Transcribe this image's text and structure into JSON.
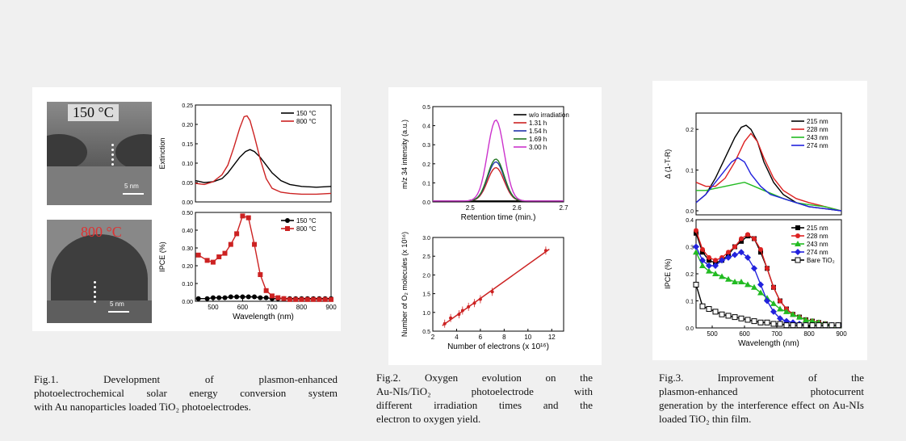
{
  "fig1": {
    "tem_top_label": "150 °C",
    "tem_bottom_label": "800 °C",
    "scale_label": "5 nm",
    "caption_lines": [
      "Fig.1. Development of plasmon-enhanced",
      "photoelectrochemical solar energy conversion system",
      "with Au nanoparticles loaded TiO₂ photoelectrodes."
    ]
  },
  "fig2": {
    "caption_lines": [
      "Fig.2. Oxygen evolution on the",
      "Au-NIs/TiO₂ photoelectrode with",
      "different irradiation times and the",
      "electron to oxygen yield."
    ]
  },
  "fig3": {
    "caption_lines": [
      "Fig.3. Improvement of the",
      "plasmon-enhanced photocurrent",
      "generation by the interference effect",
      "on Au-NIs loaded TiO₂ thin film."
    ]
  },
  "chart_data": [
    {
      "id": "fig1-extinction",
      "type": "line",
      "ylabel": "Extinction",
      "ylim": [
        0,
        0.25
      ],
      "xlim": [
        440,
        900
      ],
      "yticks": [
        "0.00",
        "0.05",
        "0.10",
        "0.15",
        "0.20",
        "0.25"
      ],
      "legend": "top-right",
      "series": [
        {
          "name": "150 °C",
          "color": "#000000",
          "x": [
            440,
            470,
            500,
            530,
            550,
            570,
            590,
            610,
            625,
            640,
            660,
            680,
            700,
            730,
            760,
            800,
            850,
            900
          ],
          "y": [
            0.055,
            0.05,
            0.052,
            0.06,
            0.075,
            0.095,
            0.115,
            0.13,
            0.135,
            0.13,
            0.115,
            0.095,
            0.075,
            0.055,
            0.045,
            0.04,
            0.038,
            0.04
          ]
        },
        {
          "name": "800 °C",
          "color": "#cc2222",
          "x": [
            440,
            470,
            500,
            530,
            550,
            570,
            590,
            605,
            615,
            625,
            640,
            660,
            680,
            700,
            730,
            760,
            800,
            850,
            900
          ],
          "y": [
            0.048,
            0.045,
            0.052,
            0.07,
            0.095,
            0.14,
            0.19,
            0.22,
            0.222,
            0.21,
            0.17,
            0.11,
            0.06,
            0.035,
            0.025,
            0.022,
            0.02,
            0.02,
            0.022
          ]
        }
      ]
    },
    {
      "id": "fig1-ipce",
      "type": "line",
      "xlabel": "Wavelength (nm)",
      "ylabel": "IPCE (%)",
      "ylim": [
        0,
        0.5
      ],
      "xlim": [
        440,
        900
      ],
      "xticks": [
        "500",
        "600",
        "700",
        "800",
        "900"
      ],
      "yticks": [
        "0.00",
        "0.10",
        "0.20",
        "0.30",
        "0.40",
        "0.50"
      ],
      "legend": "top-right",
      "series": [
        {
          "name": "150 °C",
          "color": "#000000",
          "marker": "circle",
          "x": [
            450,
            480,
            500,
            520,
            540,
            560,
            580,
            600,
            620,
            640,
            660,
            680,
            700,
            720,
            740,
            760,
            780,
            800,
            820,
            840,
            860,
            880,
            900
          ],
          "y": [
            0.015,
            0.015,
            0.02,
            0.02,
            0.02,
            0.025,
            0.025,
            0.025,
            0.025,
            0.025,
            0.02,
            0.02,
            0.015,
            0.015,
            0.015,
            0.015,
            0.015,
            0.015,
            0.015,
            0.015,
            0.015,
            0.015,
            0.015
          ]
        },
        {
          "name": "800 °C",
          "color": "#cc2222",
          "marker": "square",
          "x": [
            450,
            480,
            500,
            520,
            540,
            560,
            580,
            600,
            620,
            640,
            660,
            680,
            700,
            720,
            740,
            760,
            780,
            800,
            820,
            840,
            860,
            880,
            900
          ],
          "y": [
            0.26,
            0.23,
            0.22,
            0.25,
            0.27,
            0.32,
            0.38,
            0.48,
            0.47,
            0.32,
            0.15,
            0.06,
            0.03,
            0.02,
            0.015,
            0.01,
            0.01,
            0.01,
            0.01,
            0.01,
            0.01,
            0.01,
            0.01
          ]
        }
      ]
    },
    {
      "id": "fig2-ms",
      "type": "line",
      "xlabel": "Retention time (min.)",
      "ylabel": "m/z 34 intensity (a.u.)",
      "xlim": [
        2.42,
        2.7
      ],
      "ylim": [
        0,
        0.5
      ],
      "xticks": [
        "2.5",
        "2.6",
        "2.7"
      ],
      "yticks": [
        "0.0",
        "0.1",
        "0.2",
        "0.3",
        "0.4",
        "0.5"
      ],
      "legend": "top-right",
      "series": [
        {
          "name": "w/o irradiation",
          "color": "#000000",
          "peak": 0.005
        },
        {
          "name": "1.31 h",
          "color": "#cc2222",
          "peak": 0.18
        },
        {
          "name": "1.54 h",
          "color": "#2233aa",
          "peak": 0.21
        },
        {
          "name": "1.69 h",
          "color": "#227722",
          "peak": 0.225
        },
        {
          "name": "3.00 h",
          "color": "#cc33cc",
          "peak": 0.43
        }
      ],
      "peak_center": 2.555
    },
    {
      "id": "fig2-yield",
      "type": "scatter",
      "xlabel": "Number of electrons (x 10¹⁶)",
      "ylabel": "Number of O₂ molecules (x 10¹⁶)",
      "xlim": [
        2,
        13
      ],
      "ylim": [
        0.5,
        3.0
      ],
      "xticks": [
        "2",
        "4",
        "6",
        "8",
        "10",
        "12"
      ],
      "yticks": [
        "0.5",
        "1.0",
        "1.5",
        "2.0",
        "2.5",
        "3.0"
      ],
      "series": [
        {
          "name": "",
          "color": "#cc2222",
          "x": [
            3.0,
            3.5,
            4.2,
            4.5,
            5.0,
            5.5,
            6.0,
            7.0,
            11.5
          ],
          "y": [
            0.7,
            0.85,
            0.95,
            1.05,
            1.15,
            1.25,
            1.35,
            1.55,
            2.65
          ]
        }
      ]
    },
    {
      "id": "fig3-absorb",
      "type": "line",
      "ylabel": "Δ (1-T-R)",
      "xlim": [
        450,
        900
      ],
      "ylim": [
        -0.01,
        0.24
      ],
      "yticks": [
        "0.0",
        "0.1",
        "0.2"
      ],
      "legend": "top-right",
      "series": [
        {
          "name": "215 nm",
          "color": "#000000",
          "x": [
            450,
            480,
            510,
            540,
            570,
            590,
            605,
            620,
            640,
            660,
            690,
            720,
            760,
            800,
            850,
            900
          ],
          "y": [
            0.02,
            0.04,
            0.08,
            0.13,
            0.18,
            0.205,
            0.21,
            0.2,
            0.17,
            0.12,
            0.07,
            0.04,
            0.02,
            0.01,
            0.005,
            0.0
          ]
        },
        {
          "name": "228 nm",
          "color": "#dd2222",
          "x": [
            450,
            480,
            510,
            540,
            570,
            600,
            620,
            640,
            660,
            690,
            720,
            760,
            800,
            850,
            900
          ],
          "y": [
            0.07,
            0.06,
            0.06,
            0.08,
            0.12,
            0.17,
            0.19,
            0.17,
            0.13,
            0.08,
            0.05,
            0.03,
            0.02,
            0.01,
            0.0
          ]
        },
        {
          "name": "243 nm",
          "color": "#22bb22",
          "x": [
            450,
            480,
            510,
            540,
            570,
            600,
            630,
            660,
            690,
            720,
            760,
            800,
            850,
            900
          ],
          "y": [
            0.05,
            0.05,
            0.055,
            0.06,
            0.065,
            0.07,
            0.06,
            0.05,
            0.04,
            0.03,
            0.02,
            0.015,
            0.01,
            0.0
          ]
        },
        {
          "name": "274 nm",
          "color": "#2222dd",
          "x": [
            450,
            480,
            510,
            540,
            560,
            580,
            600,
            620,
            650,
            680,
            720,
            760,
            800,
            850,
            900
          ],
          "y": [
            0.02,
            0.04,
            0.07,
            0.1,
            0.12,
            0.13,
            0.12,
            0.09,
            0.06,
            0.04,
            0.03,
            0.02,
            0.01,
            0.005,
            0.0
          ]
        }
      ]
    },
    {
      "id": "fig3-ipce",
      "type": "line",
      "xlabel": "Wavelength (nm)",
      "ylabel": "IPCE (%)",
      "xlim": [
        450,
        900
      ],
      "ylim": [
        0,
        0.4
      ],
      "xticks": [
        "500",
        "600",
        "700",
        "800",
        "900"
      ],
      "yticks": [
        "0.0",
        "0.1",
        "0.2",
        "0.3",
        "0.4"
      ],
      "legend": "top-right",
      "series": [
        {
          "name": "215 nm",
          "color": "#000000",
          "marker": "square",
          "x": [
            450,
            470,
            490,
            510,
            530,
            550,
            570,
            590,
            610,
            630,
            650,
            670,
            690,
            710,
            730,
            750,
            770,
            790,
            810,
            830,
            850,
            870,
            890
          ],
          "y": [
            0.35,
            0.28,
            0.25,
            0.24,
            0.25,
            0.27,
            0.3,
            0.32,
            0.34,
            0.33,
            0.28,
            0.22,
            0.15,
            0.1,
            0.07,
            0.05,
            0.04,
            0.03,
            0.025,
            0.02,
            0.015,
            0.01,
            0.01
          ]
        },
        {
          "name": "228 nm",
          "color": "#dd2222",
          "marker": "circle",
          "x": [
            450,
            470,
            490,
            510,
            530,
            550,
            570,
            590,
            610,
            630,
            650,
            670,
            690,
            710,
            730,
            750,
            770,
            790,
            810,
            830,
            850,
            870,
            890
          ],
          "y": [
            0.36,
            0.29,
            0.26,
            0.25,
            0.26,
            0.28,
            0.3,
            0.33,
            0.345,
            0.33,
            0.29,
            0.22,
            0.15,
            0.1,
            0.07,
            0.05,
            0.04,
            0.03,
            0.025,
            0.02,
            0.015,
            0.01,
            0.01
          ]
        },
        {
          "name": "243 nm",
          "color": "#22bb22",
          "marker": "triangle",
          "x": [
            450,
            470,
            490,
            510,
            530,
            550,
            570,
            590,
            610,
            630,
            650,
            670,
            690,
            710,
            730,
            750,
            770,
            790,
            810,
            830,
            850,
            870,
            890
          ],
          "y": [
            0.28,
            0.23,
            0.21,
            0.2,
            0.19,
            0.18,
            0.17,
            0.17,
            0.16,
            0.15,
            0.13,
            0.11,
            0.09,
            0.07,
            0.06,
            0.05,
            0.04,
            0.03,
            0.025,
            0.02,
            0.015,
            0.01,
            0.01
          ]
        },
        {
          "name": "274 nm",
          "color": "#2222dd",
          "marker": "diamond",
          "x": [
            450,
            470,
            490,
            510,
            530,
            550,
            570,
            590,
            610,
            630,
            650,
            670,
            690,
            710,
            730,
            750,
            770,
            790,
            810,
            830,
            850,
            870,
            890
          ],
          "y": [
            0.3,
            0.25,
            0.23,
            0.23,
            0.25,
            0.26,
            0.27,
            0.28,
            0.26,
            0.22,
            0.16,
            0.1,
            0.06,
            0.035,
            0.025,
            0.02,
            0.015,
            0.01,
            0.01,
            0.01,
            0.01,
            0.01,
            0.01
          ]
        },
        {
          "name": "Bare TiO₂",
          "color": "#000000",
          "marker": "open-square",
          "x": [
            450,
            470,
            490,
            510,
            530,
            550,
            570,
            590,
            610,
            630,
            650,
            670,
            690,
            710,
            730,
            750,
            770,
            790,
            810,
            830,
            850,
            870,
            890
          ],
          "y": [
            0.16,
            0.08,
            0.07,
            0.06,
            0.05,
            0.045,
            0.04,
            0.035,
            0.03,
            0.025,
            0.02,
            0.02,
            0.015,
            0.015,
            0.01,
            0.01,
            0.01,
            0.01,
            0.01,
            0.01,
            0.01,
            0.01,
            0.01
          ]
        }
      ]
    }
  ]
}
